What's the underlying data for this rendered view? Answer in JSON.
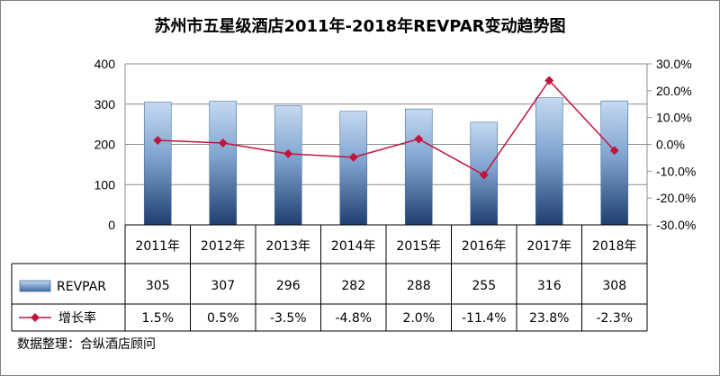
{
  "chart_data": {
    "type": "bar",
    "title": "苏州市五星级酒店2011年-2018年REVPAR变动趋势图",
    "categories": [
      "2011年",
      "2012年",
      "2013年",
      "2014年",
      "2015年",
      "2016年",
      "2017年",
      "2018年"
    ],
    "series": [
      {
        "name": "REVPAR",
        "type": "bar",
        "axis": "left",
        "values": [
          305,
          307,
          296,
          282,
          288,
          255,
          316,
          308
        ],
        "labels": [
          "305",
          "307",
          "296",
          "282",
          "288",
          "255",
          "316",
          "308"
        ],
        "color": "#4f81bd"
      },
      {
        "name": "增长率",
        "type": "line",
        "axis": "right",
        "values": [
          1.5,
          0.5,
          -3.5,
          -4.8,
          2.0,
          -11.4,
          23.8,
          -2.3
        ],
        "labels": [
          "1.5%",
          "0.5%",
          "-3.5%",
          "-4.8%",
          "2.0%",
          "-11.4%",
          "23.8%",
          "-2.3%"
        ],
        "color": "#c0143c"
      }
    ],
    "y_left": {
      "min": 0,
      "max": 400,
      "ticks": [
        "0",
        "100",
        "200",
        "300",
        "400"
      ]
    },
    "y_right": {
      "min": -30,
      "max": 30,
      "ticks": [
        "30.0%",
        "20.0%",
        "10.0%",
        "0.0%",
        "-10.0%",
        "-20.0%",
        "-30.0%"
      ]
    },
    "grid": true,
    "legend": "data-table",
    "source_note": "数据整理：合纵酒店顾问"
  }
}
